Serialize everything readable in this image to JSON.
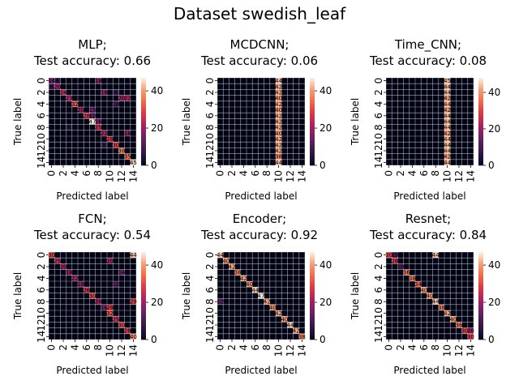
{
  "figure": {
    "title": "Dataset swedish_leaf"
  },
  "chart_data": [
    {
      "type": "heatmap",
      "model": "MLP;",
      "title": "Test accuracy: 0.66",
      "xlabel": "Predicted label",
      "ylabel": "True label",
      "n_classes": 15,
      "xticks": [
        "0",
        "2",
        "4",
        "6",
        "8",
        "10",
        "12",
        "14"
      ],
      "yticks": [
        "0",
        "2",
        "4",
        "6",
        "8",
        "10",
        "12",
        "14"
      ],
      "colorbar_ticks": [
        0,
        20,
        40
      ],
      "vmin": 0,
      "vmax": 47,
      "cells": [
        [
          0,
          0,
          14
        ],
        [
          0,
          8,
          18
        ],
        [
          0,
          1,
          6
        ],
        [
          1,
          0,
          8
        ],
        [
          1,
          1,
          20
        ],
        [
          2,
          2,
          24
        ],
        [
          2,
          9,
          18
        ],
        [
          2,
          11,
          8
        ],
        [
          3,
          3,
          23
        ],
        [
          3,
          12,
          20
        ],
        [
          3,
          13,
          22
        ],
        [
          4,
          4,
          32
        ],
        [
          4,
          11,
          10
        ],
        [
          5,
          5,
          20
        ],
        [
          5,
          7,
          15
        ],
        [
          6,
          6,
          28
        ],
        [
          6,
          7,
          12
        ],
        [
          7,
          7,
          47
        ],
        [
          7,
          8,
          16
        ],
        [
          8,
          8,
          25
        ],
        [
          8,
          3,
          6
        ],
        [
          9,
          9,
          22
        ],
        [
          9,
          13,
          18
        ],
        [
          10,
          10,
          28
        ],
        [
          11,
          11,
          30
        ],
        [
          11,
          9,
          8
        ],
        [
          12,
          12,
          38
        ],
        [
          13,
          13,
          35
        ],
        [
          14,
          14,
          45
        ]
      ],
      "annotations_readable": [
        "14",
        "0",
        "2"
      ]
    },
    {
      "type": "heatmap",
      "model": "MCDCNN;",
      "title": "Test accuracy: 0.06",
      "xlabel": "Predicted label",
      "ylabel": "True label",
      "n_classes": 15,
      "xticks": [
        "0",
        "2",
        "4",
        "6",
        "8",
        "10",
        "12",
        "14"
      ],
      "yticks": [
        "0",
        "2",
        "4",
        "6",
        "8",
        "10",
        "12",
        "14"
      ],
      "colorbar_ticks": [
        0,
        20,
        40
      ],
      "vmin": 0,
      "vmax": 47,
      "cells": [
        [
          0,
          10,
          44
        ],
        [
          1,
          10,
          42
        ],
        [
          2,
          10,
          42
        ],
        [
          3,
          10,
          40
        ],
        [
          4,
          10,
          42
        ],
        [
          5,
          10,
          40
        ],
        [
          6,
          10,
          42
        ],
        [
          7,
          10,
          42
        ],
        [
          8,
          10,
          42
        ],
        [
          9,
          10,
          40
        ],
        [
          10,
          10,
          42
        ],
        [
          11,
          10,
          42
        ],
        [
          12,
          10,
          42
        ],
        [
          13,
          10,
          38
        ],
        [
          14,
          10,
          44
        ]
      ],
      "annotations_readable": [
        "44"
      ]
    },
    {
      "type": "heatmap",
      "model": "Time_CNN;",
      "title": "Test accuracy: 0.08",
      "xlabel": "Predicted label",
      "ylabel": "True label",
      "n_classes": 15,
      "xticks": [
        "0",
        "2",
        "4",
        "6",
        "8",
        "10",
        "12",
        "14"
      ],
      "yticks": [
        "0",
        "2",
        "4",
        "6",
        "8",
        "10",
        "12",
        "14"
      ],
      "colorbar_ticks": [
        0,
        20,
        40
      ],
      "vmin": 0,
      "vmax": 48,
      "cells": [
        [
          0,
          10,
          45
        ],
        [
          1,
          10,
          44
        ],
        [
          2,
          10,
          44
        ],
        [
          3,
          10,
          42
        ],
        [
          4,
          10,
          44
        ],
        [
          5,
          10,
          42
        ],
        [
          6,
          10,
          44
        ],
        [
          7,
          10,
          44
        ],
        [
          8,
          10,
          44
        ],
        [
          9,
          10,
          42
        ],
        [
          10,
          10,
          44
        ],
        [
          11,
          10,
          44
        ],
        [
          12,
          10,
          44
        ],
        [
          13,
          10,
          42
        ],
        [
          14,
          10,
          44
        ]
      ],
      "annotations_readable": [
        "45"
      ]
    },
    {
      "type": "heatmap",
      "model": "FCN;",
      "title": "Test accuracy: 0.54",
      "xlabel": "Predicted label",
      "ylabel": "True label",
      "n_classes": 15,
      "xticks": [
        "0",
        "2",
        "4",
        "6",
        "8",
        "10",
        "12",
        "14"
      ],
      "yticks": [
        "0",
        "2",
        "4",
        "6",
        "8",
        "10",
        "12",
        "14"
      ],
      "colorbar_ticks": [
        0,
        20,
        40
      ],
      "vmin": 0,
      "vmax": 47,
      "cells": [
        [
          0,
          0,
          30
        ],
        [
          0,
          14,
          44
        ],
        [
          1,
          1,
          25
        ],
        [
          1,
          10,
          20
        ],
        [
          2,
          2,
          20
        ],
        [
          3,
          3,
          18
        ],
        [
          3,
          12,
          14
        ],
        [
          4,
          4,
          22
        ],
        [
          5,
          5,
          18
        ],
        [
          5,
          11,
          12
        ],
        [
          6,
          6,
          26
        ],
        [
          7,
          7,
          30
        ],
        [
          8,
          8,
          20
        ],
        [
          8,
          14,
          29
        ],
        [
          9,
          9,
          16
        ],
        [
          9,
          10,
          28
        ],
        [
          10,
          10,
          32
        ],
        [
          11,
          11,
          25
        ],
        [
          12,
          12,
          30
        ],
        [
          13,
          13,
          28
        ],
        [
          14,
          14,
          40
        ]
      ],
      "annotations_readable": [
        "44",
        "29",
        "40"
      ]
    },
    {
      "type": "heatmap",
      "model": "Encoder;",
      "title": "Test accuracy: 0.92",
      "xlabel": "Predicted label",
      "ylabel": "True label",
      "n_classes": 15,
      "xticks": [
        "0",
        "2",
        "4",
        "6",
        "8",
        "10",
        "12",
        "14"
      ],
      "yticks": [
        "0",
        "2",
        "4",
        "6",
        "8",
        "10",
        "12",
        "14"
      ],
      "colorbar_ticks": [
        0,
        20,
        40
      ],
      "vmin": 0,
      "vmax": 47,
      "cells": [
        [
          0,
          0,
          44
        ],
        [
          1,
          1,
          40
        ],
        [
          2,
          2,
          42
        ],
        [
          3,
          3,
          38
        ],
        [
          4,
          4,
          42
        ],
        [
          5,
          5,
          40
        ],
        [
          6,
          6,
          44
        ],
        [
          7,
          7,
          47
        ],
        [
          8,
          8,
          42
        ],
        [
          9,
          9,
          40
        ],
        [
          10,
          10,
          42
        ],
        [
          11,
          11,
          40
        ],
        [
          12,
          12,
          44
        ],
        [
          13,
          13,
          42
        ],
        [
          14,
          14,
          38
        ],
        [
          8,
          0,
          12
        ]
      ],
      "annotations_readable": [
        "38"
      ]
    },
    {
      "type": "heatmap",
      "model": "Resnet;",
      "title": "Test accuracy: 0.84",
      "xlabel": "Predicted label",
      "ylabel": "True label",
      "n_classes": 15,
      "xticks": [
        "0",
        "2",
        "4",
        "6",
        "8",
        "10",
        "12",
        "14"
      ],
      "yticks": [
        "0",
        "2",
        "4",
        "6",
        "8",
        "10",
        "12",
        "14"
      ],
      "colorbar_ticks": [
        0,
        20,
        40
      ],
      "vmin": 0,
      "vmax": 47,
      "cells": [
        [
          0,
          0,
          30
        ],
        [
          0,
          1,
          10
        ],
        [
          0,
          8,
          44
        ],
        [
          1,
          1,
          28
        ],
        [
          2,
          2,
          10
        ],
        [
          3,
          3,
          36
        ],
        [
          4,
          4,
          38
        ],
        [
          5,
          5,
          34
        ],
        [
          6,
          6,
          40
        ],
        [
          7,
          7,
          40
        ],
        [
          8,
          8,
          44
        ],
        [
          9,
          9,
          38
        ],
        [
          10,
          10,
          42
        ],
        [
          11,
          11,
          40
        ],
        [
          12,
          12,
          36
        ],
        [
          13,
          13,
          30
        ],
        [
          14,
          14,
          30
        ],
        [
          13,
          14,
          20
        ]
      ],
      "annotations_readable": []
    }
  ]
}
